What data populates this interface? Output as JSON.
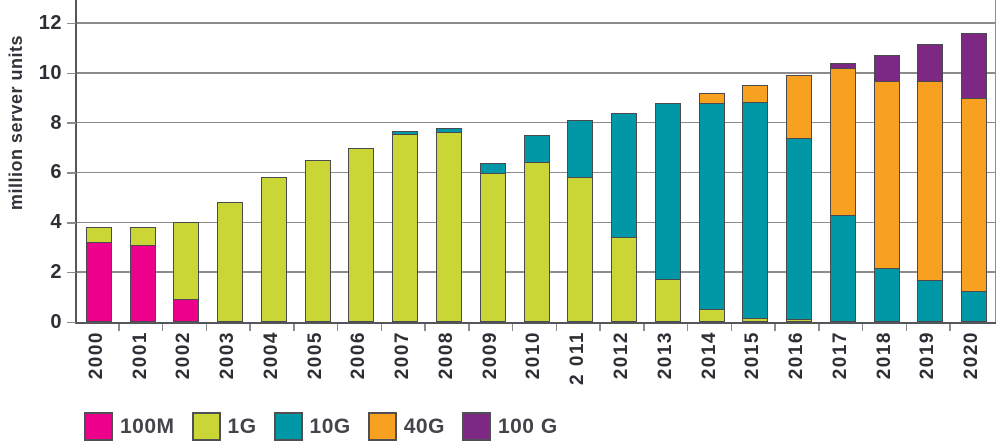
{
  "chart_data": {
    "type": "bar",
    "stacked": true,
    "ylabel": "million server units",
    "ylim": [
      0,
      12.9
    ],
    "yticks": [
      0,
      2,
      4,
      6,
      8,
      10,
      12
    ],
    "grid": true,
    "legend_position": "bottom",
    "categories": [
      "2000",
      "2001",
      "2002",
      "2003",
      "2004",
      "2005",
      "2006",
      "2007",
      "2008",
      "2009",
      "2010",
      "2 011",
      "2012",
      "2013",
      "2014",
      "2015",
      "2016",
      "2017",
      "2018",
      "2019",
      "2020"
    ],
    "series": [
      {
        "name": "100M",
        "color": "#EC008C",
        "values": [
          3.25,
          3.1,
          0.95,
          0,
          0,
          0,
          0,
          0,
          0,
          0,
          0,
          0,
          0,
          0,
          0,
          0,
          0,
          0,
          0,
          0,
          0
        ]
      },
      {
        "name": "1G",
        "color": "#C9D636",
        "values": [
          0.55,
          0.7,
          3.05,
          4.8,
          5.8,
          6.5,
          7.0,
          7.55,
          7.65,
          6.0,
          6.45,
          5.85,
          3.45,
          1.75,
          0.55,
          0.2,
          0.15,
          0,
          0,
          0,
          0
        ]
      },
      {
        "name": "10G",
        "color": "#0098A6",
        "values": [
          0,
          0,
          0,
          0,
          0,
          0,
          0,
          0.1,
          0.15,
          0.4,
          1.05,
          2.25,
          4.95,
          7.05,
          8.25,
          8.65,
          7.25,
          4.3,
          2.2,
          1.7,
          1.25
        ]
      },
      {
        "name": "40G",
        "color": "#F8A020",
        "values": [
          0,
          0,
          0,
          0,
          0,
          0,
          0,
          0,
          0,
          0,
          0,
          0,
          0,
          0,
          0.4,
          0.65,
          2.5,
          5.9,
          7.5,
          8.0,
          7.75
        ]
      },
      {
        "name": "100 G",
        "color": "#7D2983",
        "values": [
          0,
          0,
          0,
          0,
          0,
          0,
          0,
          0,
          0,
          0,
          0,
          0,
          0,
          0,
          0,
          0,
          0,
          0.2,
          1.0,
          1.45,
          2.6
        ]
      }
    ]
  }
}
